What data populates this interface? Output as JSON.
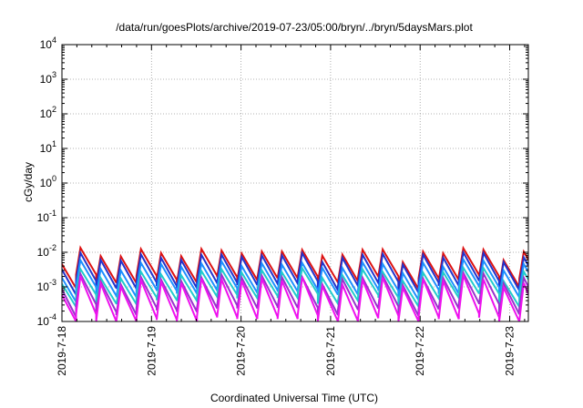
{
  "chart_data": {
    "type": "line",
    "title": "/data/run/goesPlots/archive/2019-07-23/05:00/bryn/../bryn/5daysMars.plot",
    "xlabel": "Coordinated Universal Time (UTC)",
    "ylabel": "cGy/day",
    "yscale": "log",
    "ylim": [
      0.0001,
      10000
    ],
    "y_ticks": [
      {
        "base": "10",
        "exp": "-4"
      },
      {
        "base": "10",
        "exp": "-3"
      },
      {
        "base": "10",
        "exp": "-2"
      },
      {
        "base": "10",
        "exp": "-1"
      },
      {
        "base": "10",
        "exp": "0"
      },
      {
        "base": "10",
        "exp": "1"
      },
      {
        "base": "10",
        "exp": "2"
      },
      {
        "base": "10",
        "exp": "3"
      },
      {
        "base": "10",
        "exp": "4"
      }
    ],
    "x_range": [
      "2019-07-18T00:00",
      "2019-07-23T05:00"
    ],
    "x_ticks": [
      "2019-7-18",
      "2019-7-19",
      "2019-7-20",
      "2019-7-21",
      "2019-7-22",
      "2019-7-23"
    ],
    "grid": true,
    "legend": "none",
    "series": [
      {
        "color": "#dd1111",
        "peak": 0.0095,
        "trough": 0.0016,
        "jitter": 0.2
      },
      {
        "color": "#2233cc",
        "peak": 0.0072,
        "trough": 0.0011,
        "jitter": 0.2
      },
      {
        "color": "#1e90ff",
        "peak": 0.0042,
        "trough": 0.0007,
        "jitter": 0.2
      },
      {
        "color": "#22cccc",
        "peak": 0.0025,
        "trough": 0.00045,
        "jitter": 0.22
      },
      {
        "color": "#9933cc",
        "peak": 0.0017,
        "trough": 0.00022,
        "jitter": 0.25
      },
      {
        "color": "#ee11ee",
        "peak": 0.0014,
        "trough": 0.00011,
        "jitter": 0.25
      }
    ]
  }
}
